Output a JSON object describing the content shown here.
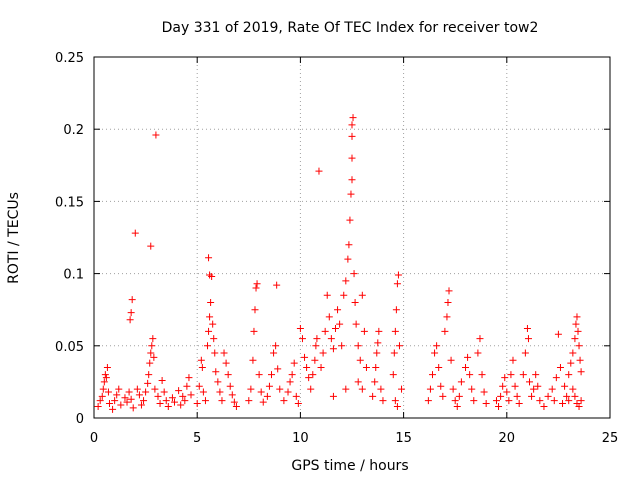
{
  "chart_data": {
    "type": "scatter",
    "title": "Day 331 of 2019, Rate Of TEC Index for receiver tow2",
    "xlabel": "GPS time / hours",
    "ylabel": "ROTI / TECUs",
    "xlim": [
      0,
      25
    ],
    "ylim": [
      0,
      0.25
    ],
    "xticks": [
      0,
      5,
      10,
      15,
      20,
      25
    ],
    "yticks": [
      0,
      0.05,
      0.1,
      0.15,
      0.2,
      0.25
    ],
    "xtick_labels": [
      "0",
      "5",
      "10",
      "15",
      "20",
      "25"
    ],
    "ytick_labels": [
      "0",
      "0.05",
      "0.1",
      "0.15",
      "0.2",
      "0.25"
    ],
    "grid": true,
    "marker": "+",
    "series_color": "#ff0000",
    "series": [
      {
        "name": "ROTI",
        "points": [
          [
            0.2,
            0.008
          ],
          [
            0.3,
            0.012
          ],
          [
            0.4,
            0.015
          ],
          [
            0.45,
            0.02
          ],
          [
            0.5,
            0.025
          ],
          [
            0.55,
            0.03
          ],
          [
            0.6,
            0.028
          ],
          [
            0.65,
            0.035
          ],
          [
            0.7,
            0.018
          ],
          [
            0.75,
            0.01
          ],
          [
            0.9,
            0.006
          ],
          [
            1.0,
            0.012
          ],
          [
            1.1,
            0.016
          ],
          [
            1.2,
            0.02
          ],
          [
            1.3,
            0.009
          ],
          [
            1.5,
            0.014
          ],
          [
            1.6,
            0.011
          ],
          [
            1.7,
            0.018
          ],
          [
            1.8,
            0.013
          ],
          [
            1.9,
            0.007
          ],
          [
            1.75,
            0.068
          ],
          [
            1.8,
            0.073
          ],
          [
            1.85,
            0.082
          ],
          [
            2.0,
            0.128
          ],
          [
            2.1,
            0.02
          ],
          [
            2.2,
            0.016
          ],
          [
            2.3,
            0.009
          ],
          [
            2.4,
            0.012
          ],
          [
            2.5,
            0.018
          ],
          [
            2.6,
            0.024
          ],
          [
            2.65,
            0.03
          ],
          [
            2.7,
            0.038
          ],
          [
            2.75,
            0.045
          ],
          [
            2.8,
            0.05
          ],
          [
            2.85,
            0.055
          ],
          [
            2.9,
            0.042
          ],
          [
            2.75,
            0.119
          ],
          [
            3.0,
            0.196
          ],
          [
            2.95,
            0.02
          ],
          [
            3.1,
            0.015
          ],
          [
            3.2,
            0.01
          ],
          [
            3.3,
            0.026
          ],
          [
            3.4,
            0.018
          ],
          [
            3.5,
            0.012
          ],
          [
            3.6,
            0.008
          ],
          [
            3.8,
            0.014
          ],
          [
            3.9,
            0.011
          ],
          [
            4.1,
            0.019
          ],
          [
            4.2,
            0.009
          ],
          [
            4.3,
            0.015
          ],
          [
            4.4,
            0.012
          ],
          [
            4.5,
            0.022
          ],
          [
            4.6,
            0.028
          ],
          [
            4.7,
            0.016
          ],
          [
            5.0,
            0.01
          ],
          [
            5.1,
            0.022
          ],
          [
            5.2,
            0.04
          ],
          [
            5.25,
            0.035
          ],
          [
            5.3,
            0.018
          ],
          [
            5.4,
            0.012
          ],
          [
            5.5,
            0.05
          ],
          [
            5.55,
            0.06
          ],
          [
            5.6,
            0.07
          ],
          [
            5.65,
            0.08
          ],
          [
            5.55,
            0.111
          ],
          [
            5.6,
            0.099
          ],
          [
            5.7,
            0.098
          ],
          [
            5.75,
            0.065
          ],
          [
            5.8,
            0.055
          ],
          [
            5.85,
            0.045
          ],
          [
            5.9,
            0.032
          ],
          [
            6.0,
            0.025
          ],
          [
            6.1,
            0.018
          ],
          [
            6.2,
            0.012
          ],
          [
            6.3,
            0.045
          ],
          [
            6.4,
            0.038
          ],
          [
            6.5,
            0.03
          ],
          [
            6.6,
            0.022
          ],
          [
            6.7,
            0.016
          ],
          [
            6.8,
            0.011
          ],
          [
            6.9,
            0.008
          ],
          [
            7.5,
            0.012
          ],
          [
            7.6,
            0.02
          ],
          [
            7.7,
            0.04
          ],
          [
            7.75,
            0.06
          ],
          [
            7.8,
            0.075
          ],
          [
            7.85,
            0.09
          ],
          [
            7.9,
            0.093
          ],
          [
            8.0,
            0.03
          ],
          [
            8.1,
            0.018
          ],
          [
            8.2,
            0.011
          ],
          [
            8.4,
            0.015
          ],
          [
            8.5,
            0.022
          ],
          [
            8.6,
            0.03
          ],
          [
            8.7,
            0.045
          ],
          [
            8.8,
            0.05
          ],
          [
            8.85,
            0.092
          ],
          [
            8.9,
            0.034
          ],
          [
            9.0,
            0.02
          ],
          [
            9.2,
            0.012
          ],
          [
            9.4,
            0.018
          ],
          [
            9.5,
            0.025
          ],
          [
            9.6,
            0.03
          ],
          [
            9.7,
            0.038
          ],
          [
            9.8,
            0.015
          ],
          [
            9.9,
            0.01
          ],
          [
            10.0,
            0.062
          ],
          [
            10.1,
            0.055
          ],
          [
            10.2,
            0.042
          ],
          [
            10.3,
            0.035
          ],
          [
            10.4,
            0.028
          ],
          [
            10.5,
            0.02
          ],
          [
            10.6,
            0.03
          ],
          [
            10.7,
            0.04
          ],
          [
            10.75,
            0.05
          ],
          [
            10.8,
            0.055
          ],
          [
            10.9,
            0.171
          ],
          [
            11.0,
            0.035
          ],
          [
            11.1,
            0.045
          ],
          [
            11.2,
            0.06
          ],
          [
            11.3,
            0.085
          ],
          [
            11.4,
            0.07
          ],
          [
            11.5,
            0.055
          ],
          [
            11.6,
            0.048
          ],
          [
            11.7,
            0.062
          ],
          [
            11.8,
            0.075
          ],
          [
            11.9,
            0.065
          ],
          [
            12.0,
            0.05
          ],
          [
            12.1,
            0.085
          ],
          [
            12.2,
            0.095
          ],
          [
            12.3,
            0.11
          ],
          [
            12.35,
            0.12
          ],
          [
            12.4,
            0.137
          ],
          [
            12.45,
            0.155
          ],
          [
            12.5,
            0.165
          ],
          [
            12.5,
            0.18
          ],
          [
            12.5,
            0.195
          ],
          [
            12.5,
            0.203
          ],
          [
            12.55,
            0.208
          ],
          [
            12.6,
            0.1
          ],
          [
            12.65,
            0.08
          ],
          [
            12.7,
            0.065
          ],
          [
            12.8,
            0.05
          ],
          [
            12.9,
            0.04
          ],
          [
            13.0,
            0.085
          ],
          [
            13.1,
            0.06
          ],
          [
            13.2,
            0.035
          ],
          [
            13.0,
            0.02
          ],
          [
            12.8,
            0.025
          ],
          [
            12.2,
            0.02
          ],
          [
            11.6,
            0.015
          ],
          [
            13.5,
            0.015
          ],
          [
            13.6,
            0.025
          ],
          [
            13.65,
            0.035
          ],
          [
            13.7,
            0.045
          ],
          [
            13.75,
            0.052
          ],
          [
            13.8,
            0.06
          ],
          [
            13.9,
            0.02
          ],
          [
            14.0,
            0.012
          ],
          [
            14.5,
            0.03
          ],
          [
            14.55,
            0.045
          ],
          [
            14.6,
            0.06
          ],
          [
            14.65,
            0.075
          ],
          [
            14.7,
            0.093
          ],
          [
            14.75,
            0.099
          ],
          [
            14.8,
            0.05
          ],
          [
            14.9,
            0.02
          ],
          [
            14.6,
            0.012
          ],
          [
            14.7,
            0.008
          ],
          [
            16.2,
            0.012
          ],
          [
            16.3,
            0.02
          ],
          [
            16.4,
            0.03
          ],
          [
            16.5,
            0.045
          ],
          [
            16.6,
            0.05
          ],
          [
            16.7,
            0.035
          ],
          [
            16.8,
            0.022
          ],
          [
            16.9,
            0.015
          ],
          [
            17.0,
            0.06
          ],
          [
            17.1,
            0.07
          ],
          [
            17.15,
            0.08
          ],
          [
            17.2,
            0.088
          ],
          [
            17.3,
            0.04
          ],
          [
            17.4,
            0.02
          ],
          [
            17.5,
            0.012
          ],
          [
            17.6,
            0.008
          ],
          [
            17.7,
            0.015
          ],
          [
            17.8,
            0.025
          ],
          [
            18.0,
            0.035
          ],
          [
            18.1,
            0.042
          ],
          [
            18.2,
            0.03
          ],
          [
            18.3,
            0.02
          ],
          [
            18.4,
            0.012
          ],
          [
            18.6,
            0.045
          ],
          [
            18.7,
            0.055
          ],
          [
            18.8,
            0.03
          ],
          [
            18.9,
            0.018
          ],
          [
            19.0,
            0.01
          ],
          [
            19.5,
            0.012
          ],
          [
            19.6,
            0.008
          ],
          [
            19.7,
            0.015
          ],
          [
            19.8,
            0.022
          ],
          [
            19.9,
            0.028
          ],
          [
            20.0,
            0.018
          ],
          [
            20.1,
            0.012
          ],
          [
            20.2,
            0.03
          ],
          [
            20.3,
            0.04
          ],
          [
            20.4,
            0.022
          ],
          [
            20.5,
            0.015
          ],
          [
            20.6,
            0.01
          ],
          [
            20.8,
            0.03
          ],
          [
            20.9,
            0.045
          ],
          [
            21.0,
            0.062
          ],
          [
            21.05,
            0.055
          ],
          [
            21.1,
            0.025
          ],
          [
            21.2,
            0.015
          ],
          [
            21.3,
            0.02
          ],
          [
            21.4,
            0.03
          ],
          [
            21.5,
            0.022
          ],
          [
            21.6,
            0.012
          ],
          [
            21.8,
            0.008
          ],
          [
            22.0,
            0.015
          ],
          [
            22.2,
            0.02
          ],
          [
            22.4,
            0.028
          ],
          [
            22.5,
            0.058
          ],
          [
            22.6,
            0.035
          ],
          [
            22.8,
            0.022
          ],
          [
            22.9,
            0.015
          ],
          [
            23.0,
            0.03
          ],
          [
            23.1,
            0.038
          ],
          [
            23.2,
            0.045
          ],
          [
            23.3,
            0.055
          ],
          [
            23.35,
            0.065
          ],
          [
            23.4,
            0.07
          ],
          [
            23.45,
            0.06
          ],
          [
            23.5,
            0.05
          ],
          [
            23.55,
            0.04
          ],
          [
            23.6,
            0.032
          ],
          [
            23.3,
            0.015
          ],
          [
            23.4,
            0.01
          ],
          [
            23.5,
            0.008
          ],
          [
            23.6,
            0.012
          ],
          [
            23.2,
            0.02
          ],
          [
            23.0,
            0.012
          ],
          [
            22.7,
            0.01
          ],
          [
            22.3,
            0.012
          ]
        ]
      }
    ]
  }
}
